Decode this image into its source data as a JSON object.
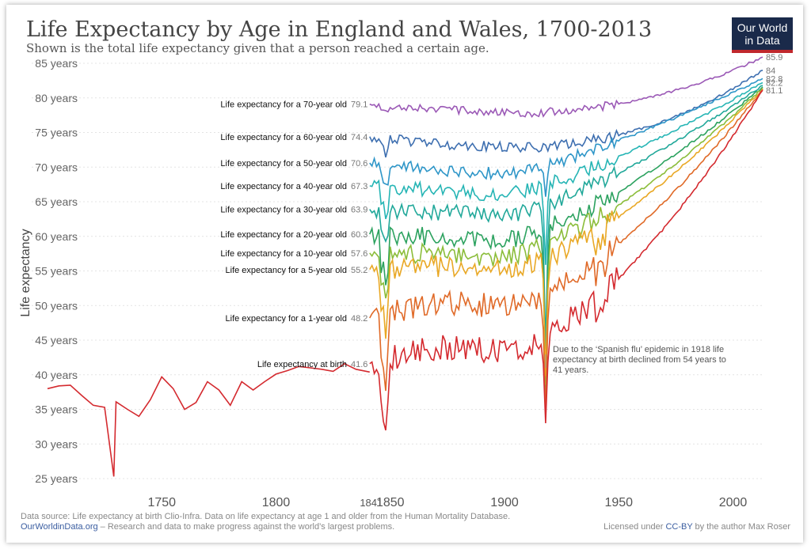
{
  "header": {
    "title": "Life Expectancy by Age in England and Wales, 1700-2013",
    "subtitle": "Shown is the total life expectancy given that a person reached a certain age.",
    "logo_line1": "Our World",
    "logo_line2": "in Data"
  },
  "footer": {
    "source": "Data source: Life expectancy at birth Clio-Infra. Data on life expectancy at age 1 and older from the Human Mortality Database.",
    "site": "OurWorldinData.org",
    "tagline": " – Research and data to make progress against the world’s largest problems.",
    "license_prefix": "Licensed under ",
    "license_link": "CC-BY",
    "license_suffix": " by the author Max Roser"
  },
  "chart_data": {
    "type": "line",
    "title": "Life Expectancy by Age in England and Wales, 1700-2013",
    "ylabel": "Life expectancy",
    "xlim": [
      1700,
      2013
    ],
    "ylim": [
      25,
      85
    ],
    "yticks": [
      "25 years",
      "30 years",
      "35 years",
      "40 years",
      "45 years",
      "50 years",
      "55 years",
      "60 years",
      "65 years",
      "70 years",
      "75 years",
      "80 years",
      "85 years"
    ],
    "yticks_values": [
      25,
      30,
      35,
      40,
      45,
      50,
      55,
      60,
      65,
      70,
      75,
      80,
      85
    ],
    "xticks": [
      1750,
      1800,
      1850,
      1900,
      1950,
      2000
    ],
    "xtick_extra": "1841",
    "grid": "horizontal",
    "annotation": {
      "lines": [
        "Due to the ‘Spanish flu’ epidemic in 1918 life",
        "expectancy at birth declined from 54 years to",
        "41 years."
      ],
      "x": 1918,
      "y": 41
    },
    "birth_early": {
      "x": [
        1700,
        1705,
        1710,
        1715,
        1720,
        1725,
        1729,
        1730,
        1735,
        1740,
        1745,
        1750,
        1755,
        1760,
        1765,
        1770,
        1775,
        1780,
        1785,
        1790,
        1795,
        1800,
        1805,
        1810,
        1815,
        1820,
        1825,
        1830,
        1835,
        1841
      ],
      "y": [
        38.0,
        38.4,
        38.5,
        37.0,
        35.6,
        35.3,
        25.3,
        36.1,
        35.0,
        34.0,
        36.4,
        39.7,
        38.0,
        35.0,
        36.0,
        39.0,
        37.8,
        35.6,
        39.0,
        37.8,
        39.0,
        40.1,
        40.6,
        41.2,
        41.0,
        40.8,
        40.5,
        41.6,
        40.8,
        40.4
      ]
    },
    "series": [
      {
        "name": "Life expectancy for a 70-year old",
        "color": "#9b59b6",
        "start": 79.1,
        "end": "85.9",
        "end_value": 85.9,
        "mid": 78.4,
        "shock": 0
      },
      {
        "name": "Life expectancy for a 60-year old",
        "color": "#3e6fb0",
        "start": 74.4,
        "end": "84",
        "end_value": 84.0,
        "mid": 73.4,
        "shock": 0.5
      },
      {
        "name": "Life expectancy for a 50-year old",
        "color": "#2e96c8",
        "start": 70.6,
        "end": "82.8",
        "end_value": 82.8,
        "mid": 69.6,
        "shock": 5
      },
      {
        "name": "Life expectancy for a 40-year old",
        "color": "#26b5b5",
        "start": 67.3,
        "end": "82.2",
        "end_value": 82.2,
        "mid": 66.6,
        "shock": 11
      },
      {
        "name": "Life expectancy for a 30-year old",
        "color": "#21a89a",
        "start": 63.9,
        "end": "",
        "end_value": 81.8,
        "mid": 63.5,
        "shock": 20
      },
      {
        "name": "Life expectancy for a 20-year old",
        "color": "#2ca25f",
        "start": 60.3,
        "end": "",
        "end_value": 81.6,
        "mid": 60.0,
        "shock": 25
      },
      {
        "name": "Life expectancy for a 10-year old",
        "color": "#8bbd3a",
        "start": 57.6,
        "end": "",
        "end_value": 81.4,
        "mid": 57.6,
        "shock": 20
      },
      {
        "name": "Life expectancy for a 5-year old",
        "color": "#e9a825",
        "start": 55.2,
        "end": "",
        "end_value": 81.3,
        "mid": 55.6,
        "shock": 17
      },
      {
        "name": "Life expectancy for a 1-year old",
        "color": "#e06a28",
        "start": 48.2,
        "end": "",
        "end_value": 81.2,
        "mid": 50.5,
        "shock": 18
      },
      {
        "name": "Life expectancy at birth",
        "color": "#d42a2f",
        "start": 41.6,
        "end": "81.1",
        "end_value": 81.1,
        "mid": 44.0,
        "shock": 13
      }
    ]
  }
}
